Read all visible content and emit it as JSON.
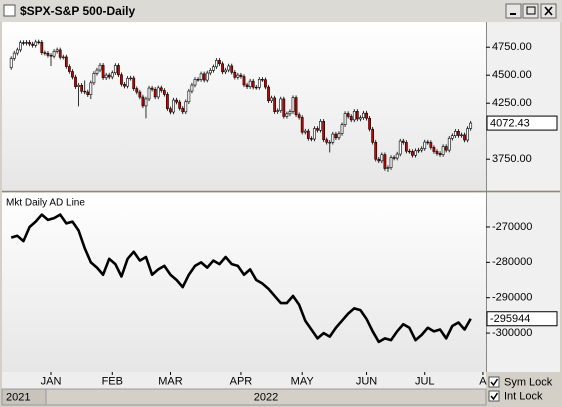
{
  "window": {
    "title": "$SPX-S&P 500-Daily",
    "years": [
      "2021",
      "2022"
    ],
    "checkboxes": [
      "Sym Lock",
      "Int Lock"
    ]
  },
  "chart_data": [
    {
      "type": "candlestick",
      "open": [
        4568,
        4649,
        4697,
        4726,
        4791,
        4786,
        4793,
        4778,
        4766,
        4797,
        4794,
        4701,
        4696,
        4677,
        4670,
        4713,
        4726,
        4660,
        4663,
        4577,
        4533,
        4483,
        4398,
        4410,
        4357,
        4350,
        4326,
        4432,
        4516,
        4546,
        4589,
        4477,
        4501,
        4484,
        4522,
        4587,
        4504,
        4419,
        4402,
        4472,
        4475,
        4380,
        4349,
        4305,
        4226,
        4288,
        4385,
        4374,
        4306,
        4387,
        4364,
        4329,
        4201,
        4171,
        4278,
        4260,
        4204,
        4173,
        4263,
        4358,
        4412,
        4463,
        4461,
        4512,
        4456,
        4520,
        4543,
        4575,
        4632,
        4602,
        4530,
        4546,
        4583,
        4526,
        4481,
        4501,
        4488,
        4413,
        4397,
        4447,
        4393,
        4391,
        4463,
        4460,
        4394,
        4272,
        4297,
        4175,
        4184,
        4288,
        4132,
        4155,
        4175,
        4300,
        4147,
        4123,
        3991,
        4001,
        3935,
        3930,
        4024,
        4008,
        4088,
        3924,
        3901,
        3901,
        3974,
        3941,
        3979,
        4058,
        4158,
        4132,
        4101,
        4177,
        4109,
        4121,
        4161,
        4116,
        4018,
        3901,
        3750,
        3735,
        3790,
        3667,
        3675,
        3765,
        3760,
        3796,
        3912,
        3900,
        3822,
        3819,
        3785,
        3825,
        3831,
        3845,
        3903,
        3899,
        3855,
        3819,
        3801,
        3791,
        3863,
        3831,
        3937,
        3960,
        3999,
        3962,
        3967,
        3921,
        4024
      ],
      "high": [
        4669,
        4717,
        4746,
        4811,
        4811,
        4813,
        4813,
        4798,
        4817,
        4817,
        4814,
        4721,
        4716,
        4697,
        4733,
        4746,
        4746,
        4683,
        4683,
        4597,
        4553,
        4503,
        4430,
        4430,
        4453,
        4370,
        4452,
        4536,
        4566,
        4609,
        4609,
        4521,
        4521,
        4542,
        4607,
        4607,
        4524,
        4439,
        4492,
        4495,
        4495,
        4400,
        4369,
        4325,
        4308,
        4405,
        4405,
        4394,
        4407,
        4407,
        4384,
        4349,
        4221,
        4298,
        4298,
        4280,
        4224,
        4283,
        4378,
        4432,
        4483,
        4483,
        4532,
        4532,
        4540,
        4563,
        4595,
        4652,
        4652,
        4622,
        4566,
        4603,
        4603,
        4546,
        4521,
        4521,
        4508,
        4433,
        4467,
        4467,
        4413,
        4483,
        4483,
        4480,
        4414,
        4317,
        4317,
        4204,
        4308,
        4308,
        4175,
        4195,
        4320,
        4320,
        4167,
        4143,
        4021,
        4021,
        3955,
        4044,
        4044,
        4108,
        4108,
        3944,
        3921,
        3994,
        3994,
        3999,
        4078,
        4178,
        4178,
        4152,
        4197,
        4197,
        4141,
        4181,
        4181,
        4136,
        4038,
        3921,
        3770,
        3810,
        3810,
        3695,
        3785,
        3785,
        3816,
        3932,
        3932,
        3920,
        3842,
        3839,
        3845,
        3851,
        3865,
        3923,
        3923,
        3919,
        3875,
        3839,
        3821,
        3883,
        3883,
        3957,
        3980,
        4019,
        4019,
        3987,
        3987,
        4044,
        4092
      ],
      "low": [
        4548,
        4629,
        4677,
        4706,
        4766,
        4766,
        4758,
        4746,
        4746,
        4774,
        4681,
        4676,
        4657,
        4582,
        4650,
        4693,
        4640,
        4640,
        4557,
        4513,
        4463,
        4378,
        4222,
        4337,
        4330,
        4306,
        4287,
        4412,
        4496,
        4526,
        4457,
        4457,
        4464,
        4464,
        4502,
        4484,
        4399,
        4382,
        4382,
        4452,
        4360,
        4329,
        4285,
        4206,
        4115,
        4268,
        4354,
        4286,
        4286,
        4344,
        4309,
        4181,
        4151,
        4151,
        4240,
        4184,
        4153,
        4153,
        4243,
        4338,
        4392,
        4441,
        4441,
        4436,
        4436,
        4500,
        4523,
        4555,
        4582,
        4510,
        4510,
        4526,
        4506,
        4461,
        4461,
        4468,
        4393,
        4377,
        4377,
        4373,
        4371,
        4371,
        4440,
        4374,
        4252,
        4252,
        4155,
        4155,
        4164,
        4112,
        4112,
        4135,
        4155,
        4127,
        4103,
        3971,
        3971,
        3915,
        3910,
        3910,
        3988,
        3988,
        3904,
        3881,
        3810,
        3881,
        3921,
        3921,
        3959,
        4038,
        4112,
        4081,
        4081,
        4089,
        4089,
        4101,
        4096,
        3998,
        3881,
        3730,
        3715,
        3715,
        3647,
        3637,
        3655,
        3740,
        3740,
        3776,
        3880,
        3802,
        3799,
        3765,
        3765,
        3805,
        3811,
        3825,
        3879,
        3835,
        3799,
        3781,
        3771,
        3771,
        3811,
        3811,
        3917,
        3940,
        3942,
        3942,
        3901,
        3901,
        4004
      ],
      "close": [
        4649,
        4697,
        4726,
        4791,
        4786,
        4793,
        4778,
        4766,
        4797,
        4794,
        4701,
        4696,
        4677,
        4670,
        4713,
        4726,
        4660,
        4663,
        4577,
        4533,
        4483,
        4398,
        4410,
        4357,
        4350,
        4326,
        4432,
        4516,
        4546,
        4589,
        4477,
        4501,
        4484,
        4522,
        4587,
        4504,
        4419,
        4402,
        4472,
        4475,
        4380,
        4349,
        4305,
        4226,
        4288,
        4385,
        4374,
        4306,
        4387,
        4364,
        4329,
        4201,
        4171,
        4278,
        4260,
        4204,
        4173,
        4263,
        4358,
        4412,
        4463,
        4461,
        4512,
        4456,
        4520,
        4543,
        4575,
        4632,
        4602,
        4530,
        4546,
        4583,
        4526,
        4481,
        4501,
        4488,
        4413,
        4397,
        4447,
        4393,
        4391,
        4463,
        4460,
        4394,
        4272,
        4297,
        4175,
        4184,
        4288,
        4132,
        4155,
        4175,
        4300,
        4147,
        4123,
        3991,
        4001,
        3935,
        3930,
        4024,
        4008,
        4088,
        3924,
        3901,
        3901,
        3974,
        3941,
        3979,
        4058,
        4158,
        4132,
        4101,
        4177,
        4109,
        4121,
        4161,
        4116,
        4018,
        3901,
        3750,
        3735,
        3790,
        3667,
        3675,
        3765,
        3760,
        3796,
        3912,
        3900,
        3822,
        3819,
        3785,
        3825,
        3831,
        3845,
        3903,
        3899,
        3855,
        3819,
        3801,
        3791,
        3863,
        3831,
        3937,
        3960,
        3999,
        3962,
        3967,
        3921,
        4024,
        4072.43
      ],
      "xlim": [
        -3,
        155
      ],
      "ylim": [
        3475,
        4975
      ],
      "yticks": [
        {
          "value": 4750,
          "label": "4750.00"
        },
        {
          "value": 4500,
          "label": "4500.00"
        },
        {
          "value": 4250,
          "label": "4250.00"
        },
        {
          "value": 3750,
          "label": "3750.00"
        }
      ],
      "up_color": "#ffffff",
      "down_color": "#cc0000"
    },
    {
      "type": "line",
      "title": "Mkt Daily AD Line",
      "x": [
        0,
        2,
        4,
        6,
        8,
        10,
        12,
        14,
        16,
        18,
        20,
        22,
        24,
        26,
        28,
        30,
        32,
        34,
        36,
        38,
        40,
        42,
        44,
        46,
        48,
        50,
        52,
        54,
        56,
        58,
        60,
        62,
        64,
        66,
        68,
        70,
        72,
        74,
        76,
        78,
        80,
        82,
        84,
        86,
        88,
        90,
        92,
        94,
        96,
        98,
        100,
        102,
        104,
        106,
        108,
        110,
        112,
        114,
        116,
        118,
        120,
        122,
        124,
        126,
        128,
        130,
        132,
        134,
        136,
        138,
        140,
        142,
        144,
        146,
        148,
        150
      ],
      "values": [
        -273000,
        -272500,
        -274000,
        -270000,
        -268500,
        -266500,
        -268000,
        -267500,
        -266500,
        -269000,
        -268500,
        -271000,
        -276000,
        -280000,
        -281500,
        -283500,
        -279000,
        -280500,
        -284000,
        -279000,
        -277000,
        -279500,
        -278500,
        -283500,
        -282000,
        -281000,
        -283500,
        -285000,
        -287000,
        -283500,
        -281000,
        -280000,
        -281500,
        -279500,
        -280500,
        -278500,
        -280500,
        -281000,
        -283500,
        -282000,
        -285000,
        -286000,
        -287500,
        -289500,
        -291500,
        -291500,
        -289500,
        -292000,
        -296500,
        -299000,
        -301500,
        -300000,
        -301000,
        -298500,
        -296500,
        -294500,
        -293000,
        -293500,
        -296000,
        -299500,
        -302500,
        -301500,
        -302000,
        -299500,
        -297500,
        -298500,
        -302000,
        -300500,
        -298500,
        -299500,
        -299000,
        -301500,
        -298000,
        -297000,
        -299000,
        -295944
      ],
      "color": "#000000",
      "xlim": [
        -3,
        155
      ],
      "ylim": [
        -311000,
        -260400
      ],
      "yticks": [
        -270000,
        -280000,
        -290000,
        -300000
      ],
      "xticks": [
        {
          "value": 13,
          "label": "JAN"
        },
        {
          "value": 33,
          "label": "FEB"
        },
        {
          "value": 52,
          "label": "MAR"
        },
        {
          "value": 75,
          "label": "APR"
        },
        {
          "value": 95,
          "label": "MAY"
        },
        {
          "value": 116,
          "label": "JUN"
        },
        {
          "value": 135,
          "label": "JUL"
        },
        {
          "value": 154,
          "label": "A"
        }
      ]
    }
  ]
}
